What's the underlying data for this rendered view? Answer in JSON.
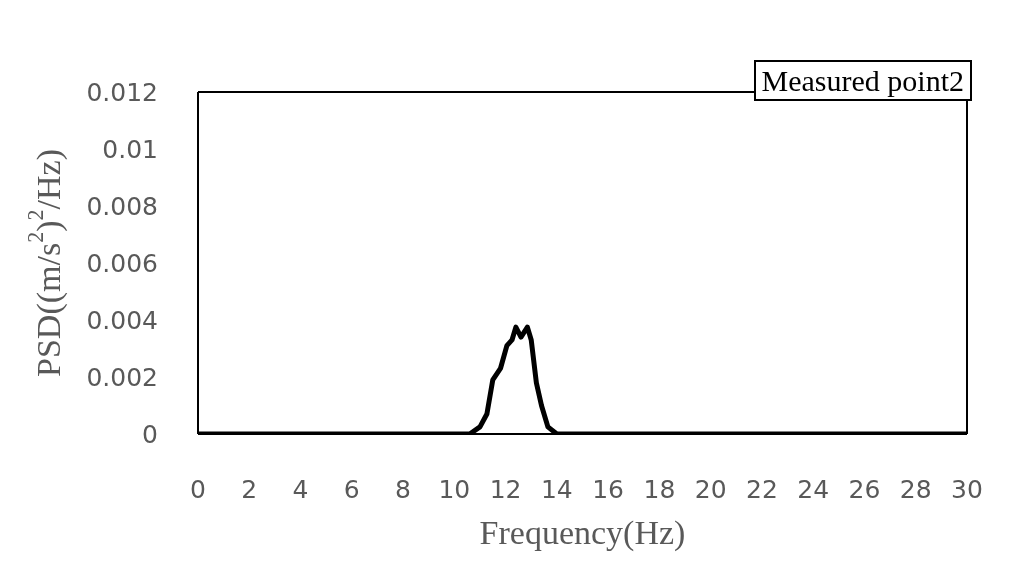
{
  "chart_data": {
    "type": "line",
    "xlabel": "Frequency(Hz)",
    "ylabel": "PSD((m/s$^{2}$)$^{2}$/Hz)",
    "x": [
      0,
      10.6,
      11.0,
      11.27,
      11.5,
      11.8,
      12.05,
      12.25,
      12.4,
      12.6,
      12.85,
      13.0,
      13.2,
      13.4,
      13.65,
      14.0,
      30
    ],
    "series": [
      {
        "name": "Measured point2",
        "color": "#000000",
        "values": [
          0,
          0,
          0.00025,
          0.0007,
          0.0019,
          0.0023,
          0.0031,
          0.0033,
          0.00375,
          0.0034,
          0.00375,
          0.0033,
          0.0018,
          0.001,
          0.00025,
          0,
          0
        ]
      }
    ],
    "xlim": [
      0,
      30
    ],
    "xticks": [
      0,
      2,
      4,
      6,
      8,
      10,
      12,
      14,
      16,
      18,
      20,
      22,
      24,
      26,
      28,
      30
    ],
    "ylim": [
      0,
      0.012
    ],
    "yticks": [
      0,
      0.002,
      0.004,
      0.006,
      0.008,
      0.01,
      0.012
    ],
    "grid": false,
    "legend": "top right",
    "marker": "none",
    "line_style": "solid"
  }
}
